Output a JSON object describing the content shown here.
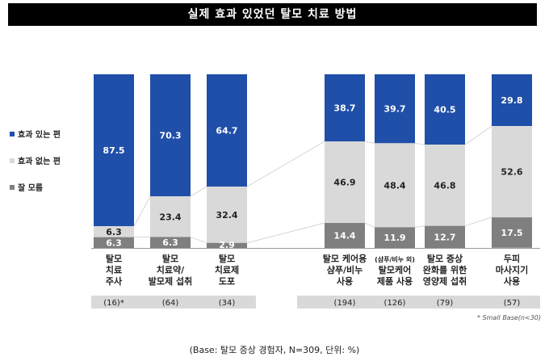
{
  "chart_data": {
    "type": "bar",
    "title": "실제 효과 있었던 탈모 치료 방법",
    "stacked": true,
    "ylim": [
      0,
      100
    ],
    "grid": false,
    "legend_position": "left",
    "categories": [
      {
        "lines": [
          "탈모",
          "치료",
          "주사"
        ],
        "base": "(16)*"
      },
      {
        "lines": [
          "탈모",
          "치료약/",
          "발모제 섭취"
        ],
        "base": "(64)"
      },
      {
        "lines": [
          "탈모",
          "치료제",
          "도포"
        ],
        "base": "(34)"
      },
      {
        "lines": [
          "탈모 케어용",
          "샴푸/비누",
          "사용"
        ],
        "base": "(194)"
      },
      {
        "lines": [
          "(샴푸/비누 외)",
          "탈모케어",
          "제품 사용"
        ],
        "base": "(126)"
      },
      {
        "lines": [
          "탈모 증상",
          "완화를 위한",
          "영양제 섭취"
        ],
        "base": "(79)"
      },
      {
        "lines": [
          "두피",
          "마사지기",
          "사용"
        ],
        "base": "(57)"
      }
    ],
    "series": [
      {
        "name": "효과 있는 편",
        "color": "#1f4fa8",
        "label_color": "#ffffff",
        "values": [
          87.5,
          70.3,
          64.7,
          38.7,
          39.7,
          40.5,
          29.8
        ]
      },
      {
        "name": "효과 없는 편",
        "color": "#d9d9d9",
        "label_color": "#222222",
        "values": [
          6.3,
          23.4,
          32.4,
          46.9,
          48.4,
          46.8,
          52.6
        ]
      },
      {
        "name": "잘 모름",
        "color": "#7f7f7f",
        "label_color": "#ffffff",
        "values": [
          6.3,
          6.3,
          2.9,
          14.4,
          11.9,
          12.7,
          17.5
        ]
      }
    ],
    "small_base_note": "* Small Base(n<30)",
    "footer": "(Base: 탈모 증상 경험자, N=309, 단위: %)"
  }
}
